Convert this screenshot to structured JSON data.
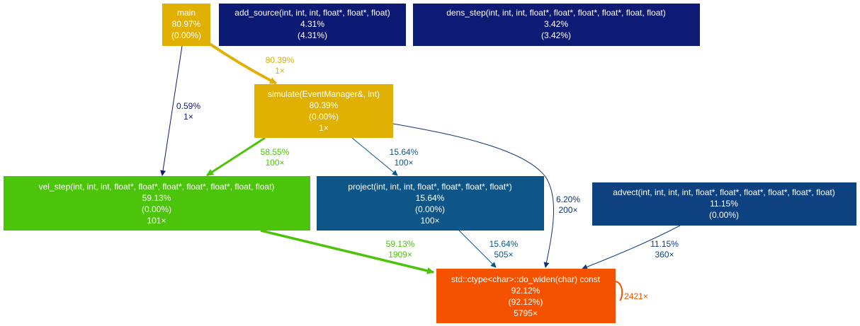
{
  "nodes": {
    "main": {
      "lines": [
        "main",
        "80.97%",
        "(0.00%)"
      ],
      "color": "#e0b003"
    },
    "add_source": {
      "lines": [
        "add_source(int, int, int, float*, float*, float)",
        "4.31%",
        "(4.31%)"
      ],
      "color": "#0d1a73"
    },
    "dens_step": {
      "lines": [
        "dens_step(int, int, int, float*, float*, float*, float*, float, float)",
        "3.42%",
        "(3.42%)"
      ],
      "color": "#0d1b74"
    },
    "simulate": {
      "lines": [
        "simulate(EventManager&, int)",
        "80.39%",
        "(0.00%)",
        "1×"
      ],
      "color": "#e0b003"
    },
    "vel_step": {
      "lines": [
        "vel_step(int, int, int, float*, float*, float*, float*, float*, float, float)",
        "59.13%",
        "(0.00%)",
        "101×"
      ],
      "color": "#4bc409"
    },
    "project": {
      "lines": [
        "project(int, int, int, float*, float*, float*, float*)",
        "15.64%",
        "(0.00%)",
        "100×"
      ],
      "color": "#0d5687"
    },
    "advect": {
      "lines": [
        "advect(int, int, int, int, float*, float*, float*, float*, float*, float)",
        "11.15%",
        "(0.00%)"
      ],
      "color": "#0e417f"
    },
    "do_widen": {
      "lines": [
        "std::ctype<char>::do_widen(char) const",
        "92.12%",
        "(92.12%)",
        "5795×"
      ],
      "color": "#f55200"
    }
  },
  "edges": [
    {
      "id": "main-simulate",
      "labels": [
        "80.39%",
        "1×"
      ],
      "color": "#e0b003"
    },
    {
      "id": "main-vel_step",
      "labels": [
        "0.59%",
        "1×"
      ],
      "color": "#0d1a73"
    },
    {
      "id": "simulate-vel_step",
      "labels": [
        "58.55%",
        "100×"
      ],
      "color": "#4bc409"
    },
    {
      "id": "simulate-project",
      "labels": [
        "15.64%",
        "100×"
      ],
      "color": "#0d5687"
    },
    {
      "id": "simulate-do_widen",
      "labels": [
        "6.20%",
        "200×"
      ],
      "color": "#0d3274"
    },
    {
      "id": "vel_step-do_widen",
      "labels": [
        "59.13%",
        "1909×"
      ],
      "color": "#4bc409"
    },
    {
      "id": "project-do_widen",
      "labels": [
        "15.64%",
        "505×"
      ],
      "color": "#0d5687"
    },
    {
      "id": "advect-do_widen",
      "labels": [
        "11.15%",
        "360×"
      ],
      "color": "#0e417f"
    },
    {
      "id": "do_widen-self",
      "labels": [
        "2421×"
      ],
      "color": "#f55200"
    }
  ]
}
